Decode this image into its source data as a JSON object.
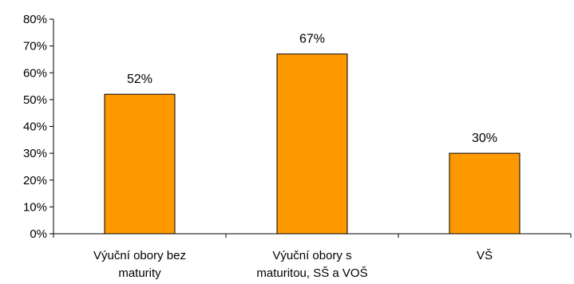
{
  "chart_data": {
    "type": "bar",
    "categories": [
      [
        "Výuční obory bez",
        "maturity"
      ],
      [
        "Výuční obory s",
        "maturitou, SŠ a VOŠ"
      ],
      [
        "VŠ"
      ]
    ],
    "values": [
      52,
      67,
      30
    ],
    "data_labels": [
      "52%",
      "67%",
      "30%"
    ],
    "yticks": [
      "0%",
      "10%",
      "20%",
      "30%",
      "40%",
      "50%",
      "60%",
      "70%",
      "80%"
    ],
    "ylim": [
      0,
      80
    ],
    "grid": false,
    "legend": "none",
    "bar_color": "#FF9900",
    "bar_edge_color": "#000000"
  }
}
